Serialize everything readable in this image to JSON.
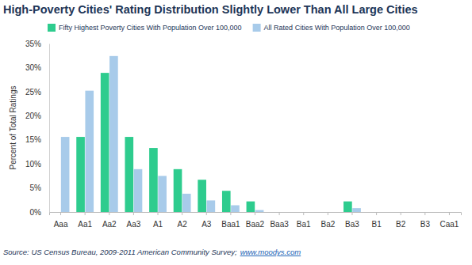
{
  "chart_data": {
    "type": "bar",
    "title": "High-Poverty Cities' Rating Distribution Slightly Lower Than All Large Cities",
    "y_label": "Percent of Total Ratings",
    "source": "Source: US Census Bureau, 2009-2011 American Community Survey;",
    "source_url": "www.moodys.com",
    "categories": [
      "Aaa",
      "Aa1",
      "Aa2",
      "Aa3",
      "A1",
      "A2",
      "A3",
      "Baa1",
      "Baa2",
      "Baa3",
      "Ba1",
      "Ba2",
      "Ba3",
      "B1",
      "B2",
      "B3",
      "Caa1"
    ],
    "series": [
      {
        "name": "Fifty Highest Poverty Cities With Population Over 100,000",
        "color": "#2ecc8e",
        "values": [
          0,
          15.6,
          28.9,
          15.6,
          13.3,
          8.9,
          6.7,
          4.4,
          2.2,
          0,
          0,
          0,
          2.2,
          0,
          0,
          0,
          0
        ]
      },
      {
        "name": "All Rated Cities With Population Over 100,000",
        "color": "#a8cbea",
        "values": [
          15.6,
          25.2,
          32.4,
          8.9,
          7.5,
          3.8,
          2.4,
          1.4,
          0.4,
          0,
          0,
          0,
          0.8,
          0,
          0,
          0,
          0
        ]
      }
    ],
    "ylim": [
      0,
      35
    ],
    "yticks": [
      {
        "value": 0,
        "label": "0%"
      },
      {
        "value": 5,
        "label": "5%"
      },
      {
        "value": 10,
        "label": "10%"
      },
      {
        "value": 15,
        "label": "15%"
      },
      {
        "value": 20,
        "label": "20%"
      },
      {
        "value": 25,
        "label": "25%"
      },
      {
        "value": 30,
        "label": "30%"
      },
      {
        "value": 35,
        "label": "35%"
      }
    ],
    "grid": false,
    "legend": "top"
  }
}
